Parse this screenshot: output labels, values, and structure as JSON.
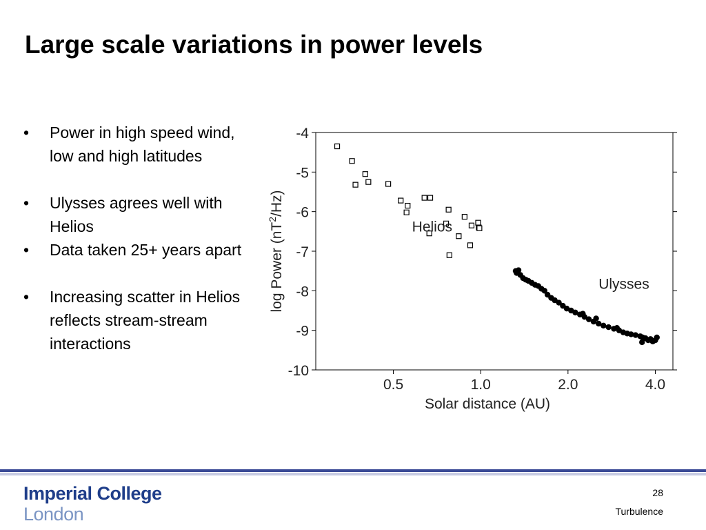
{
  "slide": {
    "title": "Large scale variations in power levels",
    "bullets": [
      "Power in high speed wind, low and high latitudes",
      "Ulysses agrees well with Helios",
      "Data taken 25+ years apart",
      "Increasing scatter in Helios reflects stream-stream interactions"
    ],
    "logo_line1": "Imperial College",
    "logo_line2": "London",
    "page_number": "28",
    "footer_label": "Turbulence",
    "colors": {
      "band": "#3a4a96",
      "band_light": "#c7cbe3",
      "logo": "#1f3e8a"
    }
  },
  "chart_data": {
    "type": "scatter",
    "title": "",
    "xlabel": "Solar distance (AU)",
    "ylabel": "log Power (nT",
    "ylabel_sup": "2",
    "ylabel_tail": "/Hz)",
    "x_scale": "log",
    "xlim": [
      0.27,
      4.6
    ],
    "ylim": [
      -10,
      -4
    ],
    "x_ticks": [
      0.5,
      1.0,
      2.0,
      4.0
    ],
    "x_tick_labels": [
      "0.5",
      "1.0",
      "2.0",
      "4.0"
    ],
    "y_ticks": [
      -4,
      -5,
      -6,
      -7,
      -8,
      -9,
      -10
    ],
    "y_tick_labels": [
      "-4",
      "-5",
      "-6",
      "-7",
      "-8",
      "-9",
      "-10"
    ],
    "grid": false,
    "series": [
      {
        "name": "Helios",
        "marker": "open-square",
        "points": [
          [
            0.32,
            -4.35
          ],
          [
            0.36,
            -4.72
          ],
          [
            0.37,
            -5.32
          ],
          [
            0.4,
            -5.05
          ],
          [
            0.41,
            -5.25
          ],
          [
            0.48,
            -5.3
          ],
          [
            0.53,
            -5.72
          ],
          [
            0.56,
            -5.85
          ],
          [
            0.555,
            -6.02
          ],
          [
            0.64,
            -5.65
          ],
          [
            0.67,
            -5.65
          ],
          [
            0.665,
            -6.55
          ],
          [
            0.76,
            -6.3
          ],
          [
            0.775,
            -5.95
          ],
          [
            0.78,
            -7.1
          ],
          [
            0.84,
            -6.62
          ],
          [
            0.88,
            -6.13
          ],
          [
            0.93,
            -6.35
          ],
          [
            0.92,
            -6.85
          ],
          [
            0.98,
            -6.28
          ],
          [
            0.985,
            -6.4
          ],
          [
            0.99,
            -6.42
          ]
        ]
      },
      {
        "name": "Ulysses",
        "marker": "filled-circle",
        "points": [
          [
            1.32,
            -7.5
          ],
          [
            1.33,
            -7.55
          ],
          [
            1.35,
            -7.48
          ],
          [
            1.37,
            -7.6
          ],
          [
            1.4,
            -7.68
          ],
          [
            1.43,
            -7.72
          ],
          [
            1.46,
            -7.75
          ],
          [
            1.5,
            -7.8
          ],
          [
            1.54,
            -7.85
          ],
          [
            1.58,
            -7.88
          ],
          [
            1.62,
            -7.95
          ],
          [
            1.66,
            -8.0
          ],
          [
            1.7,
            -8.1
          ],
          [
            1.75,
            -8.18
          ],
          [
            1.8,
            -8.24
          ],
          [
            1.86,
            -8.3
          ],
          [
            1.92,
            -8.38
          ],
          [
            1.98,
            -8.45
          ],
          [
            2.05,
            -8.5
          ],
          [
            2.12,
            -8.55
          ],
          [
            2.2,
            -8.6
          ],
          [
            2.28,
            -8.66
          ],
          [
            2.36,
            -8.72
          ],
          [
            2.45,
            -8.78
          ],
          [
            2.55,
            -8.83
          ],
          [
            2.65,
            -8.88
          ],
          [
            2.76,
            -8.92
          ],
          [
            2.88,
            -8.96
          ],
          [
            3.0,
            -9.0
          ],
          [
            3.1,
            -9.05
          ],
          [
            3.2,
            -9.08
          ],
          [
            3.3,
            -9.1
          ],
          [
            3.42,
            -9.12
          ],
          [
            3.55,
            -9.15
          ],
          [
            3.62,
            -9.18
          ],
          [
            3.7,
            -9.2
          ],
          [
            3.78,
            -9.25
          ],
          [
            3.85,
            -9.22
          ],
          [
            3.92,
            -9.28
          ],
          [
            4.0,
            -9.25
          ],
          [
            4.05,
            -9.18
          ],
          [
            3.6,
            -9.3
          ],
          [
            2.95,
            -8.94
          ],
          [
            2.5,
            -8.7
          ],
          [
            2.25,
            -8.58
          ]
        ]
      }
    ],
    "annotations": [
      {
        "text": "Helios",
        "x": 0.58,
        "y": -6.5
      },
      {
        "text": "Ulysses",
        "x": 2.55,
        "y": -7.95
      }
    ]
  }
}
